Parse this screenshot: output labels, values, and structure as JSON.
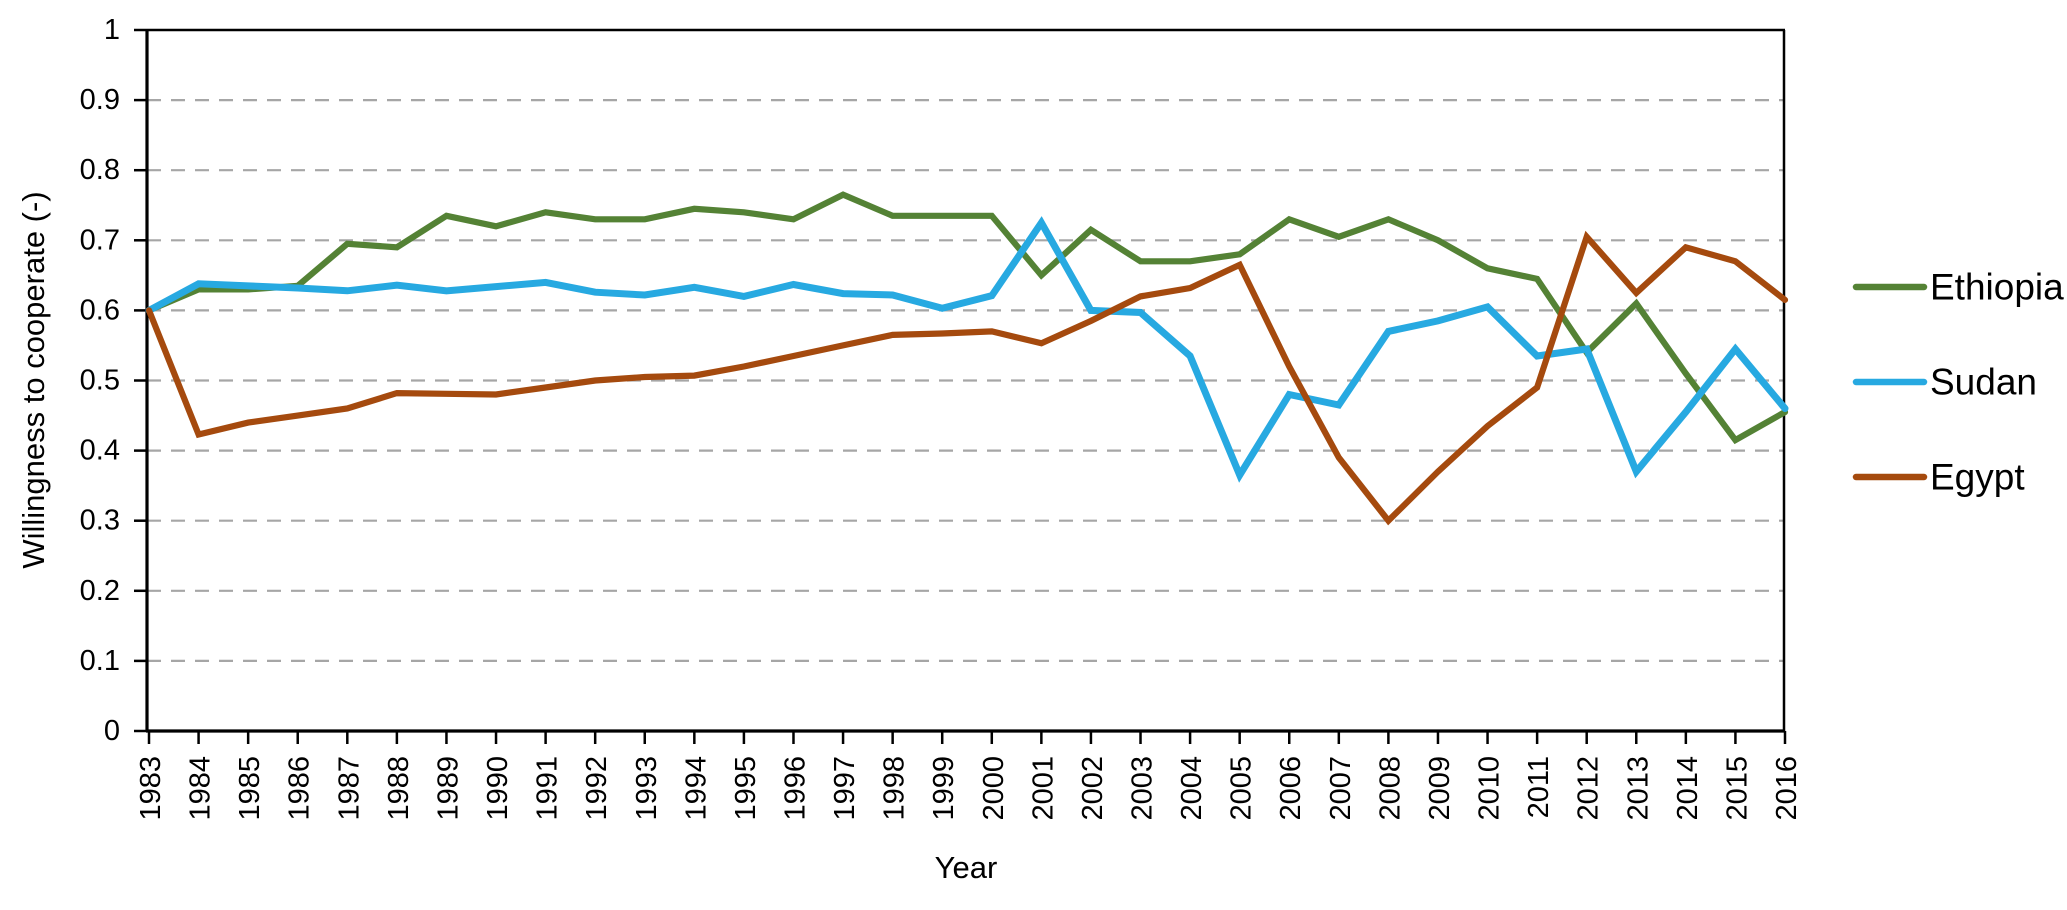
{
  "page": {
    "background": "#FFFFFF"
  },
  "chart_data": {
    "type": "line",
    "title": "",
    "xlabel": "Year",
    "ylabel": "Willingness to cooperate (-)",
    "ylim": [
      0,
      1
    ],
    "yticks": [
      0,
      0.1,
      0.2,
      0.3,
      0.4,
      0.5,
      0.6,
      0.7,
      0.8,
      0.9,
      1
    ],
    "ytick_labels": [
      "0",
      "0.1",
      "0.2",
      "0.3",
      "0.4",
      "0.5",
      "0.6",
      "0.7",
      "0.8",
      "0.9",
      "1"
    ],
    "grid": "horizontal dashed gridlines at each 0.1",
    "grid_color": "#A6A6A6",
    "axis_color": "#000000",
    "legend_position": "right",
    "categories": [
      1983,
      1984,
      1985,
      1986,
      1987,
      1988,
      1989,
      1990,
      1991,
      1992,
      1993,
      1994,
      1995,
      1996,
      1997,
      1998,
      1999,
      2000,
      2001,
      2002,
      2003,
      2004,
      2005,
      2006,
      2007,
      2008,
      2009,
      2010,
      2011,
      2012,
      2013,
      2014,
      2015,
      2016
    ],
    "series": [
      {
        "name": "Ethiopia",
        "color": "#548235",
        "values": [
          0.6,
          0.63,
          0.63,
          0.635,
          0.695,
          0.69,
          0.735,
          0.72,
          0.74,
          0.73,
          0.73,
          0.745,
          0.74,
          0.73,
          0.765,
          0.735,
          0.735,
          0.735,
          0.65,
          0.715,
          0.67,
          0.67,
          0.68,
          0.73,
          0.705,
          0.73,
          0.7,
          0.66,
          0.645,
          0.54,
          0.61,
          0.51,
          0.415,
          0.455
        ]
      },
      {
        "name": "Sudan",
        "color": "#27A9E1",
        "values": [
          0.6,
          0.638,
          0.635,
          0.632,
          0.628,
          0.636,
          0.628,
          0.634,
          0.64,
          0.626,
          0.622,
          0.633,
          0.62,
          0.637,
          0.624,
          0.622,
          0.603,
          0.621,
          0.725,
          0.6,
          0.597,
          0.535,
          0.365,
          0.48,
          0.465,
          0.57,
          0.585,
          0.605,
          0.535,
          0.545,
          0.37,
          0.455,
          0.545,
          0.46
        ]
      },
      {
        "name": "Egypt",
        "color": "#A54A0E",
        "values": [
          0.6,
          0.423,
          0.44,
          0.45,
          0.46,
          0.482,
          0.481,
          0.48,
          0.49,
          0.5,
          0.505,
          0.507,
          0.52,
          0.535,
          0.55,
          0.565,
          0.567,
          0.57,
          0.553,
          0.585,
          0.62,
          0.632,
          0.665,
          0.52,
          0.39,
          0.3,
          0.37,
          0.435,
          0.49,
          0.705,
          0.625,
          0.69,
          0.67,
          0.615
        ]
      }
    ]
  }
}
